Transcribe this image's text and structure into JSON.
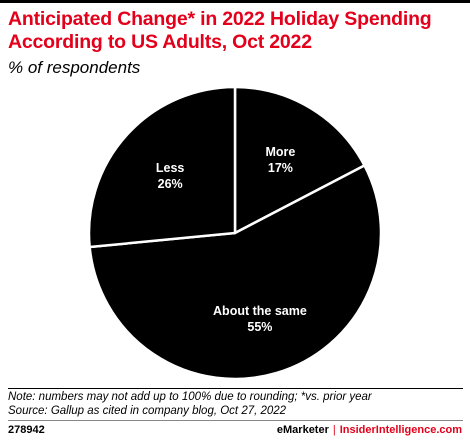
{
  "header": {
    "title": "Anticipated Change* in 2022 Holiday Spending According to US Adults, Oct 2022",
    "subtitle": "% of respondents"
  },
  "footer": {
    "note": "Note: numbers may not add up to 100% due to rounding; *vs. prior year",
    "source": "Source: Gallup as cited in company blog, Oct 27, 2022",
    "chart_id": "278942",
    "brand_left": "eMarketer",
    "brand_sep": "|",
    "brand_right": "InsiderIntelligence.com"
  },
  "colors": {
    "title": "#e3001b",
    "slice": "#000000",
    "slice_border": "#ffffff",
    "label": "#ffffff"
  },
  "chart_data": {
    "type": "pie",
    "title": "Anticipated Change* in 2022 Holiday Spending According to US Adults, Oct 2022",
    "subtitle": "% of respondents",
    "unit": "%",
    "slices": [
      {
        "label": "More",
        "value": 17,
        "display": "17%"
      },
      {
        "label": "About the same",
        "value": 55,
        "display": "55%"
      },
      {
        "label": "Less",
        "value": 26,
        "display": "26%"
      }
    ]
  }
}
